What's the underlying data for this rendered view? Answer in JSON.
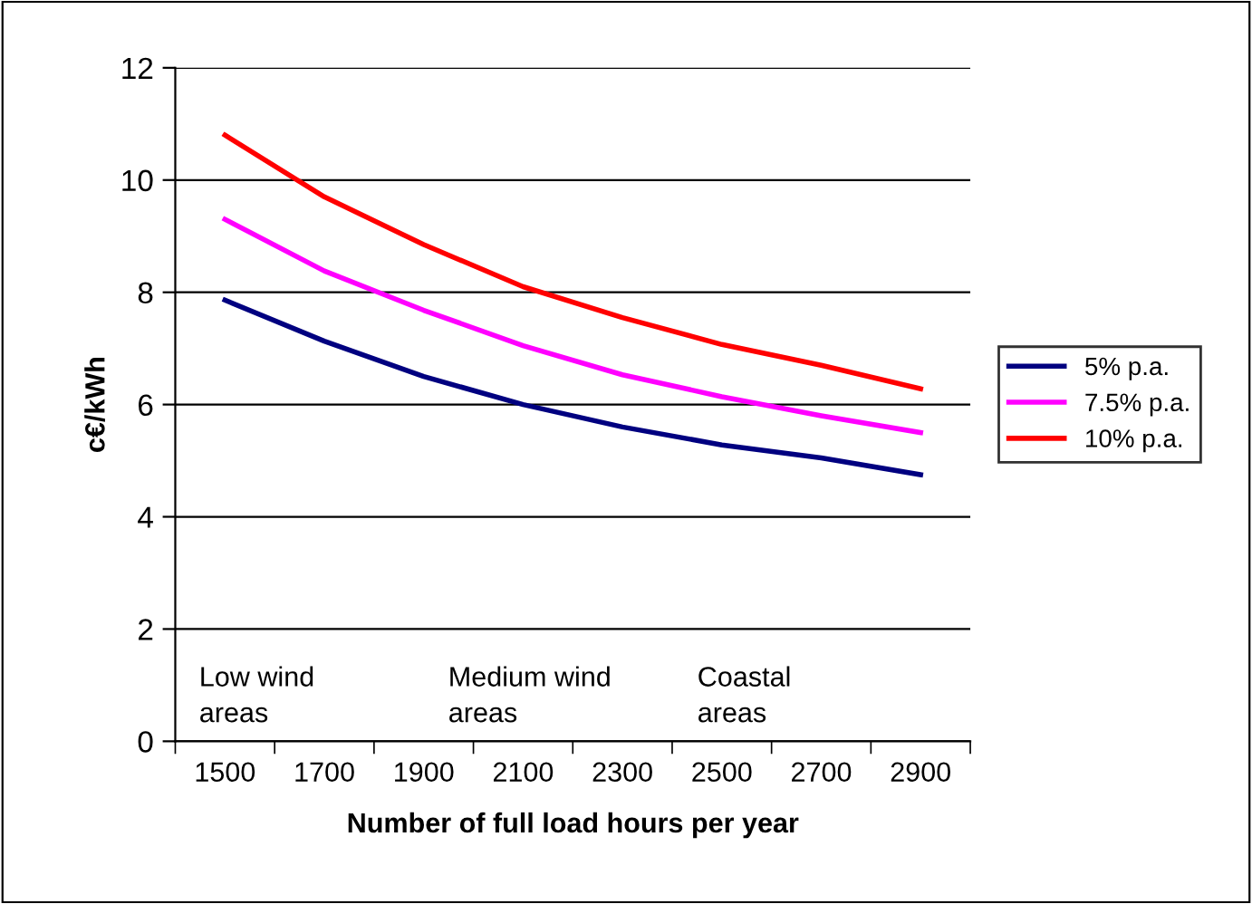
{
  "chart_data": {
    "type": "line",
    "xlabel": "Number of full load hours per year",
    "ylabel": "c€/kWh",
    "categories": [
      "1500",
      "1700",
      "1900",
      "2100",
      "2300",
      "2500",
      "2700",
      "2900"
    ],
    "series": [
      {
        "name": "5% p.a.",
        "color": "#000080",
        "values": [
          7.86,
          7.13,
          6.5,
          6.0,
          5.6,
          5.28,
          5.05,
          4.75
        ]
      },
      {
        "name": "7.5% p.a.",
        "color": "#ff00ff",
        "values": [
          9.3,
          8.38,
          7.68,
          7.05,
          6.53,
          6.14,
          5.8,
          5.5
        ]
      },
      {
        "name": "10% p.a.",
        "color": "#ff0000",
        "values": [
          10.8,
          9.7,
          8.85,
          8.1,
          7.55,
          7.07,
          6.7,
          6.28
        ]
      }
    ],
    "ylim": [
      0,
      12
    ],
    "yticks": [
      0,
      2,
      4,
      6,
      8,
      10,
      12
    ],
    "grid": "y",
    "legend": "right",
    "marker": "none",
    "line_style": "solid",
    "annotations": [
      "Low wind\nareas",
      "Medium wind\nareas",
      "Coastal\nareas"
    ]
  }
}
